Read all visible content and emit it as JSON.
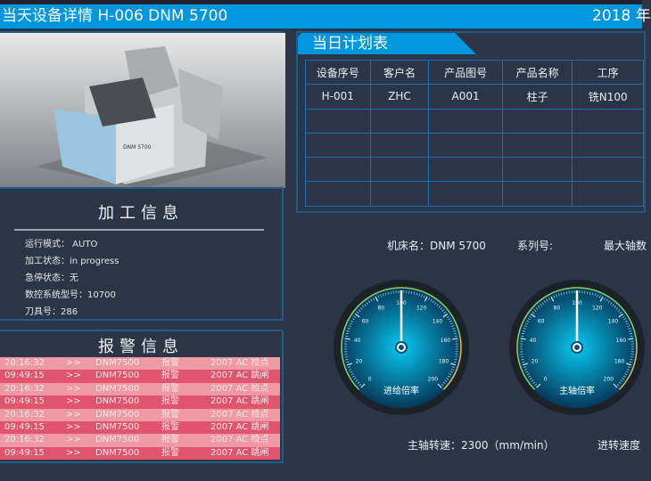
{
  "header": {
    "title": "当天设备详情  H-006   DNM 5700",
    "date": "2018 年"
  },
  "machine_image": {
    "label": "DNM 5700"
  },
  "processing_info": {
    "title": "加工信息",
    "items": [
      {
        "label": "运行模式：",
        "value": " AUTO"
      },
      {
        "label": "加工状态：",
        "value": "in progress"
      },
      {
        "label": "急停状态：",
        "value": "无"
      },
      {
        "label": "数控系统型号：",
        "value": "10700"
      },
      {
        "label": "刀具号：",
        "value": "286"
      }
    ]
  },
  "alarm_info": {
    "title": "报警信息",
    "rows": [
      {
        "time": "20:16:32",
        "arrow": ">>",
        "machine": "DNM7500",
        "type": "报警",
        "detail": "2007  AC 检点",
        "shade": "light"
      },
      {
        "time": "09:49:15",
        "arrow": ">>",
        "machine": "DNM7500",
        "type": "报警",
        "detail": "2007  AC 跳闸",
        "shade": "dark"
      },
      {
        "time": "20:16:32",
        "arrow": ">>",
        "machine": "DNM7500",
        "type": "报警",
        "detail": "2007  AC 检点",
        "shade": "light"
      },
      {
        "time": "09:49:15",
        "arrow": ">>",
        "machine": "DNM7500",
        "type": "报警",
        "detail": "2007  AC 跳闸",
        "shade": "dark"
      },
      {
        "time": "20:16:32",
        "arrow": ">>",
        "machine": "DNM7500",
        "type": "报警",
        "detail": "2007  AC 检点",
        "shade": "light"
      },
      {
        "time": "09:49:15",
        "arrow": ">>",
        "machine": "DNM7500",
        "type": "报警",
        "detail": "2007  AC 跳闸",
        "shade": "dark"
      },
      {
        "time": "20:16:32",
        "arrow": ">>",
        "machine": "DNM7500",
        "type": "报警",
        "detail": "2007  AC 检点",
        "shade": "light"
      },
      {
        "time": "09:49:15",
        "arrow": ">>",
        "machine": "DNM7500",
        "type": "报警",
        "detail": "2007  AC 跳闸",
        "shade": "dark"
      }
    ],
    "colors": {
      "light": "#ef9aa2",
      "dark": "#e0556d"
    }
  },
  "plan": {
    "title": "当日计划表",
    "columns": [
      "设备序号",
      "客户名",
      "产品图号",
      "产品名称",
      "工序"
    ],
    "rows": [
      [
        "H-001",
        "ZHC",
        "A001",
        "柱子",
        "铣N100"
      ],
      [
        "",
        "",
        "",
        "",
        ""
      ],
      [
        "",
        "",
        "",
        "",
        ""
      ],
      [
        "",
        "",
        "",
        "",
        ""
      ],
      [
        "",
        "",
        "",
        "",
        ""
      ]
    ]
  },
  "machine_meta": {
    "name": "机床名：DNM 5700",
    "series": "系列号:",
    "max_axes": "最大轴数"
  },
  "gauges": [
    {
      "label": "进给倍率",
      "value": 100,
      "min": 0,
      "max": 200,
      "ticks": [
        0,
        20,
        40,
        60,
        80,
        100,
        120,
        140,
        160,
        180,
        200
      ]
    },
    {
      "label": "主轴倍率",
      "value": 100,
      "min": 0,
      "max": 200,
      "ticks": [
        0,
        20,
        40,
        60,
        80,
        100,
        120,
        140,
        160,
        180,
        200
      ]
    }
  ],
  "spindle_speed": "主轴转速：2300（mm/min）",
  "feed_speed": "进转速度",
  "colors": {
    "header": "#0296df",
    "background": "#2c3547",
    "border": "#1f5f8a"
  }
}
